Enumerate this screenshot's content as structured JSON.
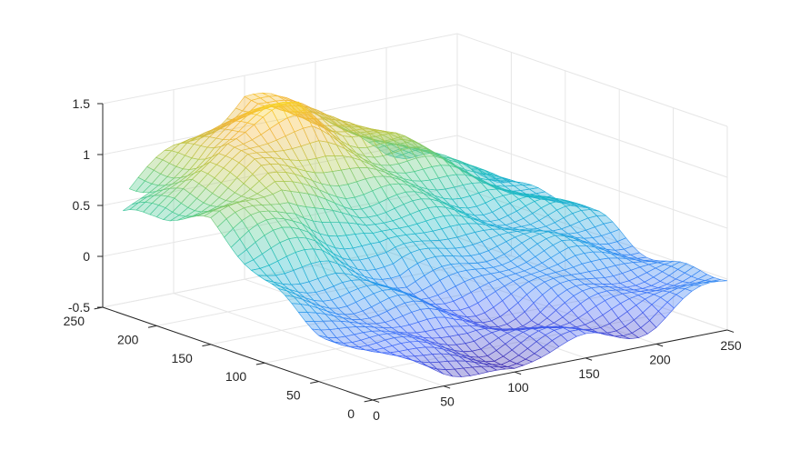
{
  "chart_data": {
    "type": "surface",
    "title": "",
    "xlabel": "",
    "ylabel": "",
    "zlabel": "",
    "xlim": [
      0,
      250
    ],
    "ylim": [
      0,
      250
    ],
    "zlim": [
      -0.5,
      1.5
    ],
    "x_ticks": [
      "0",
      "50",
      "100",
      "150",
      "200",
      "250"
    ],
    "y_ticks": [
      "0",
      "50",
      "100",
      "150",
      "200",
      "250"
    ],
    "z_ticks": [
      "-0.5",
      "0",
      "0.5",
      "1",
      "1.5"
    ],
    "grid": true,
    "colormap": "parula",
    "colormap_stops": [
      "#3e26a8",
      "#4467f8",
      "#2c96ee",
      "#1bb9c6",
      "#4fcb8e",
      "#b4c84b",
      "#f3b43a",
      "#f9e21c"
    ],
    "surface_extent": {
      "x": [
        0,
        250
      ],
      "y": [
        0,
        250
      ]
    },
    "height_samples": {
      "note_grid": "rows indexed by y (0,50,100,150,200,250), columns by x (0,50,100,150,200,250)",
      "z": [
        [
          -0.2,
          -0.35,
          -0.45,
          -0.35,
          -0.25,
          -0.05
        ],
        [
          0.0,
          -0.15,
          -0.3,
          -0.25,
          -0.1,
          0.0
        ],
        [
          0.3,
          0.2,
          0.0,
          0.1,
          0.2,
          0.1
        ],
        [
          0.7,
          0.9,
          0.6,
          0.5,
          0.4,
          0.2
        ],
        [
          0.6,
          1.2,
          1.35,
          1.0,
          0.6,
          0.3
        ],
        [
          0.4,
          0.9,
          1.3,
          1.0,
          0.5,
          0.2
        ]
      ]
    }
  }
}
